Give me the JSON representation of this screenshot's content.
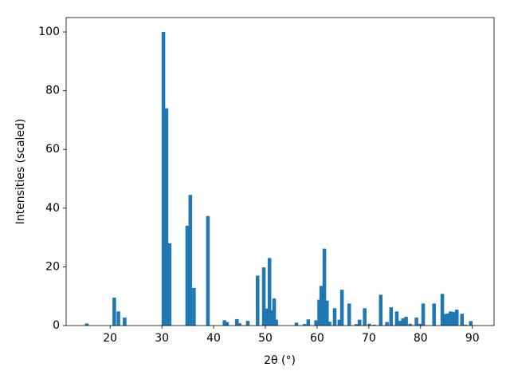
{
  "chart_data": {
    "type": "bar",
    "xlabel": "2θ (°)",
    "ylabel": "Intensities (scaled)",
    "x": [
      15.5,
      20.8,
      21.6,
      22.8,
      30.3,
      30.9,
      31.5,
      34.9,
      35.5,
      36.2,
      38.9,
      42.1,
      42.6,
      44.5,
      45.0,
      46.6,
      48.5,
      49.7,
      50.3,
      50.8,
      51.3,
      51.7,
      52.1,
      56.0,
      57.6,
      58.3,
      59.8,
      60.4,
      60.8,
      61.4,
      61.9,
      62.4,
      63.4,
      64.3,
      64.8,
      66.2,
      67.6,
      68.2,
      69.2,
      70.1,
      71.0,
      72.3,
      73.5,
      74.3,
      75.4,
      76.0,
      76.6,
      77.2,
      78.0,
      79.2,
      79.8,
      80.5,
      82.6,
      84.2,
      84.7,
      85.2,
      85.8,
      86.4,
      87.0,
      88.0,
      88.6,
      89.7
    ],
    "values": [
      0.7,
      9.5,
      4.8,
      2.7,
      100,
      74,
      28,
      34,
      44.5,
      12.8,
      37.3,
      1.8,
      1.2,
      2.2,
      0.8,
      1.6,
      17,
      19.8,
      5.8,
      23,
      5.2,
      9.2,
      2.0,
      1.0,
      0.5,
      2.1,
      1.8,
      8.8,
      13.5,
      26.2,
      8.5,
      1.3,
      5.9,
      2.0,
      12.2,
      7.5,
      0.5,
      2.0,
      5.9,
      0.6,
      0.3,
      10.5,
      1.2,
      6.2,
      4.8,
      1.6,
      2.5,
      3.0,
      0.6,
      2.7,
      0.6,
      7.5,
      7.5,
      10.8,
      3.9,
      4.1,
      4.8,
      4.6,
      5.4,
      4.0,
      0.3,
      1.5
    ],
    "color": "#1f77b4",
    "xlim": [
      11.5,
      94.2
    ],
    "ylim": [
      0,
      104.9
    ],
    "xticks": [
      20,
      30,
      40,
      50,
      60,
      70,
      80,
      90
    ],
    "yticks": [
      0,
      20,
      40,
      60,
      80,
      100
    ],
    "grid": false
  }
}
